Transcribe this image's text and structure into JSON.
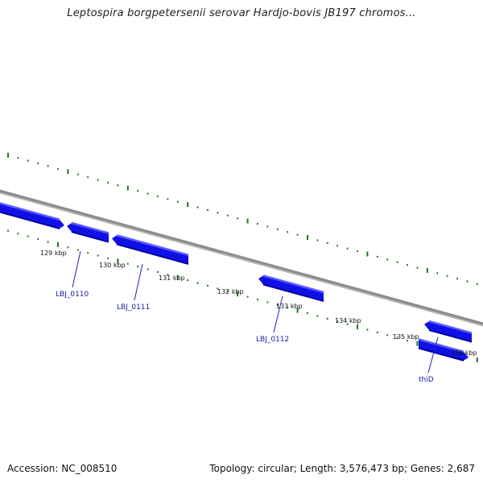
{
  "title": "Leptospira borgpetersenii serovar Hardjo-bovis JB197 chromos...",
  "footer": {
    "accession": "Accession: NC_008510",
    "summary": "Topology: circular; Length: 3,576,473 bp; Genes: 2,687"
  },
  "colors": {
    "backbone": "#8c8c8c",
    "gene_fill": "#1010e6",
    "gene_top": "#5a5aff",
    "gene_side": "#0000a0",
    "tick": "#1a7a1a",
    "gene_label": "#1a1aa6",
    "leader_line": "#2020c0"
  },
  "ticks": [
    {
      "label": "129 kbp"
    },
    {
      "label": "130 kbp"
    },
    {
      "label": "131 kbp"
    },
    {
      "label": "132 kbp"
    },
    {
      "label": "133 kbp"
    },
    {
      "label": "134 kbp"
    },
    {
      "label": "135 kbp"
    },
    {
      "label": "136 kbp"
    }
  ],
  "genes": [
    {
      "label": "LBJ_0110"
    },
    {
      "label": "LBJ_0111"
    },
    {
      "label": "LBJ_0112"
    },
    {
      "label": "thiD"
    }
  ]
}
